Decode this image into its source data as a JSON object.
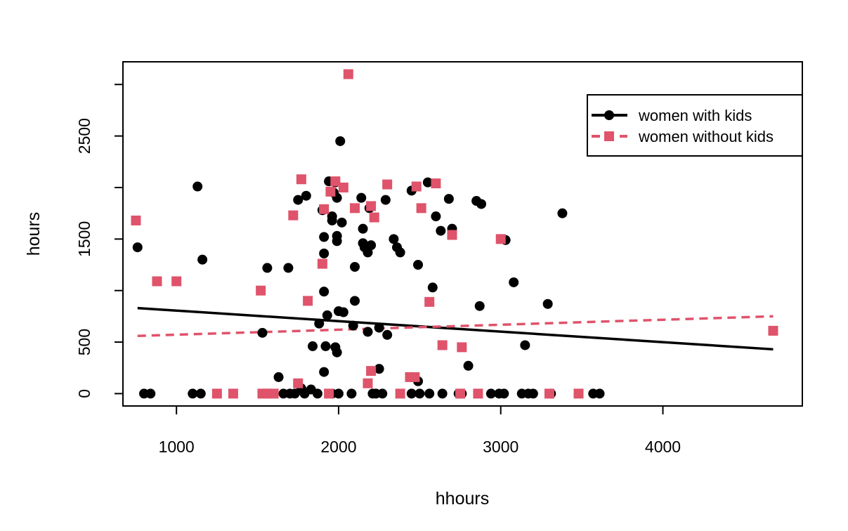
{
  "chart_data": {
    "type": "scatter",
    "title": "",
    "xlabel": "hhours",
    "ylabel": "hours",
    "xlim": [
      670,
      4860
    ],
    "ylim": [
      -120,
      3220
    ],
    "x_ticks": [
      1000,
      2000,
      3000,
      4000
    ],
    "y_ticks": [
      0,
      500,
      1500,
      2500
    ],
    "x_tick_labels": [
      "1000",
      "2000",
      "3000",
      "4000"
    ],
    "y_tick_labels": [
      "0",
      "500",
      "1500",
      "2500"
    ],
    "grid": false,
    "legend_position": "top-right",
    "series": [
      {
        "name": "women with kids",
        "marker": "circle",
        "color": "#000000",
        "line_style": "solid",
        "fit_line": {
          "x": [
            760,
            4680
          ],
          "y": [
            830,
            430
          ]
        },
        "points": [
          [
            760,
            1420
          ],
          [
            800,
            0
          ],
          [
            840,
            0
          ],
          [
            1100,
            0
          ],
          [
            1130,
            2010
          ],
          [
            1150,
            0
          ],
          [
            1160,
            1300
          ],
          [
            1530,
            590
          ],
          [
            1560,
            1220
          ],
          [
            1630,
            160
          ],
          [
            1660,
            0
          ],
          [
            1690,
            1220
          ],
          [
            1700,
            0
          ],
          [
            1730,
            0
          ],
          [
            1750,
            1880
          ],
          [
            1770,
            50
          ],
          [
            1790,
            0
          ],
          [
            1800,
            1920
          ],
          [
            1830,
            40
          ],
          [
            1840,
            460
          ],
          [
            1870,
            0
          ],
          [
            1880,
            680
          ],
          [
            1900,
            1780
          ],
          [
            1910,
            1360
          ],
          [
            1910,
            1520
          ],
          [
            1910,
            990
          ],
          [
            1910,
            210
          ],
          [
            1920,
            460
          ],
          [
            1930,
            760
          ],
          [
            1940,
            2060
          ],
          [
            1960,
            0
          ],
          [
            1960,
            1720
          ],
          [
            1960,
            1680
          ],
          [
            1970,
            1950
          ],
          [
            1980,
            450
          ],
          [
            1980,
            2050
          ],
          [
            1990,
            1480
          ],
          [
            1990,
            1530
          ],
          [
            1990,
            1900
          ],
          [
            1990,
            400
          ],
          [
            2000,
            800
          ],
          [
            2000,
            0
          ],
          [
            2010,
            2450
          ],
          [
            2020,
            1660
          ],
          [
            2030,
            790
          ],
          [
            2080,
            0
          ],
          [
            2090,
            660
          ],
          [
            2100,
            900
          ],
          [
            2100,
            1230
          ],
          [
            2140,
            1900
          ],
          [
            2150,
            1460
          ],
          [
            2150,
            1600
          ],
          [
            2160,
            1420
          ],
          [
            2180,
            1370
          ],
          [
            2180,
            600
          ],
          [
            2190,
            1800
          ],
          [
            2200,
            1440
          ],
          [
            2210,
            0
          ],
          [
            2230,
            0
          ],
          [
            2250,
            640
          ],
          [
            2250,
            240
          ],
          [
            2270,
            0
          ],
          [
            2290,
            1880
          ],
          [
            2300,
            570
          ],
          [
            2340,
            1500
          ],
          [
            2360,
            1420
          ],
          [
            2380,
            1370
          ],
          [
            2450,
            0
          ],
          [
            2450,
            1970
          ],
          [
            2490,
            1250
          ],
          [
            2490,
            120
          ],
          [
            2500,
            0
          ],
          [
            2550,
            2050
          ],
          [
            2560,
            0
          ],
          [
            2580,
            1030
          ],
          [
            2600,
            1720
          ],
          [
            2630,
            1580
          ],
          [
            2640,
            0
          ],
          [
            2680,
            1890
          ],
          [
            2700,
            1600
          ],
          [
            2740,
            0
          ],
          [
            2760,
            0
          ],
          [
            2800,
            270
          ],
          [
            2850,
            1870
          ],
          [
            2870,
            850
          ],
          [
            2880,
            1840
          ],
          [
            2940,
            0
          ],
          [
            2990,
            0
          ],
          [
            3020,
            0
          ],
          [
            3030,
            1490
          ],
          [
            3080,
            1080
          ],
          [
            3130,
            0
          ],
          [
            3150,
            470
          ],
          [
            3170,
            0
          ],
          [
            3200,
            0
          ],
          [
            3290,
            870
          ],
          [
            3310,
            0
          ],
          [
            3380,
            1750
          ],
          [
            3570,
            0
          ],
          [
            3610,
            0
          ]
        ]
      },
      {
        "name": "women without kids",
        "marker": "square",
        "color": "#DF536B",
        "line_style": "dashed",
        "fit_line": {
          "x": [
            760,
            4680
          ],
          "y": [
            560,
            750
          ]
        },
        "points": [
          [
            750,
            1680
          ],
          [
            880,
            1090
          ],
          [
            1000,
            1090
          ],
          [
            1250,
            0
          ],
          [
            1350,
            0
          ],
          [
            1520,
            1000
          ],
          [
            1530,
            0
          ],
          [
            1560,
            0
          ],
          [
            1600,
            0
          ],
          [
            1720,
            1730
          ],
          [
            1750,
            100
          ],
          [
            1770,
            2080
          ],
          [
            1810,
            900
          ],
          [
            1900,
            1260
          ],
          [
            1910,
            1790
          ],
          [
            1940,
            0
          ],
          [
            1950,
            1960
          ],
          [
            1980,
            2060
          ],
          [
            2030,
            2000
          ],
          [
            2060,
            3100
          ],
          [
            2100,
            1800
          ],
          [
            2180,
            100
          ],
          [
            2200,
            1820
          ],
          [
            2200,
            220
          ],
          [
            2220,
            1710
          ],
          [
            2300,
            2030
          ],
          [
            2380,
            0
          ],
          [
            2440,
            160
          ],
          [
            2470,
            160
          ],
          [
            2480,
            2010
          ],
          [
            2510,
            1800
          ],
          [
            2560,
            890
          ],
          [
            2600,
            2040
          ],
          [
            2640,
            470
          ],
          [
            2700,
            1540
          ],
          [
            2750,
            0
          ],
          [
            2760,
            450
          ],
          [
            2860,
            0
          ],
          [
            3000,
            1500
          ],
          [
            3300,
            0
          ],
          [
            3480,
            0
          ],
          [
            4680,
            610
          ]
        ]
      }
    ]
  }
}
